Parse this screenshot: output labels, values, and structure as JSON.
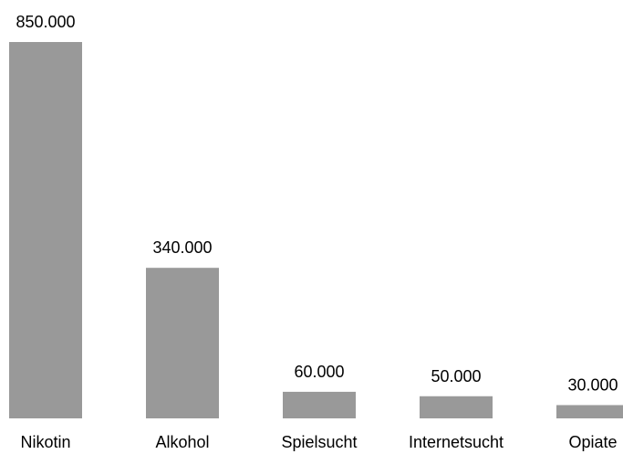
{
  "chart_data": {
    "type": "bar",
    "categories": [
      "Nikotin",
      "Alkohol",
      "Spielsucht",
      "Internetsucht",
      "Opiate"
    ],
    "values": [
      850000,
      340000,
      60000,
      50000,
      30000
    ],
    "data_labels": [
      "850.000",
      "340.000",
      "60.000",
      "50.000",
      "30.000"
    ],
    "title": "",
    "xlabel": "",
    "ylabel": "",
    "ylim": [
      0,
      850000
    ],
    "grid": false,
    "legend": "none",
    "bar_color": "#999999",
    "background": "#ffffff"
  }
}
